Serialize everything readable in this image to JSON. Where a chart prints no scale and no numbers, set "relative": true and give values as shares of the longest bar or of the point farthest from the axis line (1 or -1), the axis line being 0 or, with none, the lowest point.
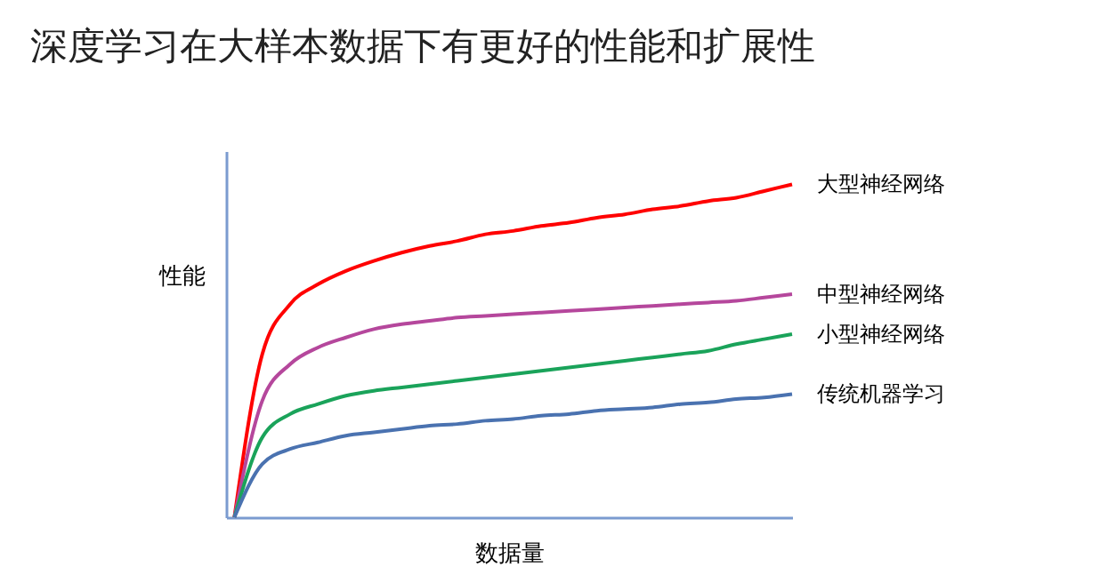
{
  "chart_data": {
    "type": "line",
    "title": "深度学习在大样本数据下有更好的性能和扩展性",
    "xlabel": "数据量",
    "ylabel": "性能",
    "relative": true,
    "categories": [
      null,
      null,
      null,
      null,
      null,
      null,
      null,
      null,
      null,
      null,
      null,
      null,
      null,
      null,
      null,
      null,
      null,
      null,
      null,
      null,
      null
    ],
    "series": [
      {
        "name": "大型神经网络",
        "color": "#ff0000",
        "values": [
          0,
          0.49,
          0.64,
          0.7,
          0.74,
          0.77,
          0.795,
          0.815,
          0.83,
          0.85,
          0.86,
          0.875,
          0.885,
          0.9,
          0.91,
          0.925,
          0.935,
          0.95,
          0.96,
          0.98,
          1
        ]
      },
      {
        "name": "中型神经网络",
        "color": "#b5479c",
        "values": [
          0,
          0.35,
          0.46,
          0.51,
          0.54,
          0.565,
          0.58,
          0.59,
          0.6,
          0.605,
          0.61,
          0.615,
          0.62,
          0.625,
          0.63,
          0.635,
          0.64,
          0.645,
          0.65,
          0.66,
          0.67
        ]
      },
      {
        "name": "小型神经网络",
        "color": "#1aa35a",
        "values": [
          0,
          0.24,
          0.31,
          0.34,
          0.365,
          0.38,
          0.39,
          0.4,
          0.41,
          0.42,
          0.43,
          0.44,
          0.45,
          0.46,
          0.47,
          0.48,
          0.49,
          0.5,
          0.52,
          0.535,
          0.55
        ]
      },
      {
        "name": "传统机器学习",
        "color": "#4a72b0",
        "values": [
          0,
          0.16,
          0.205,
          0.225,
          0.245,
          0.255,
          0.265,
          0.275,
          0.28,
          0.29,
          0.295,
          0.305,
          0.31,
          0.32,
          0.325,
          0.33,
          0.34,
          0.345,
          0.355,
          0.36,
          0.37
        ]
      }
    ]
  }
}
